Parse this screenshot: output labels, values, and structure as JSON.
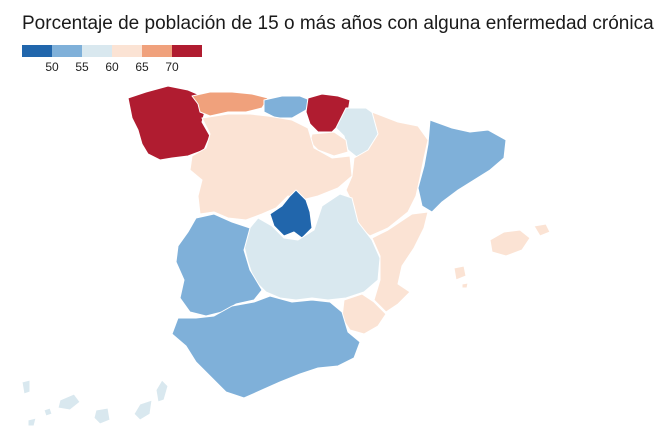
{
  "title": "Porcentaje de población de 15 o más años con alguna enfermedad crónica",
  "legend": {
    "bins": [
      {
        "color": "#2166ac"
      },
      {
        "color": "#7fb0d9"
      },
      {
        "color": "#d9e8ef"
      },
      {
        "color": "#fbe3d4"
      },
      {
        "color": "#f0a17c"
      },
      {
        "color": "#b01c30"
      }
    ],
    "ticks": [
      "50",
      "55",
      "60",
      "65",
      "70"
    ]
  },
  "colors": {
    "band_lt50": "#2166ac",
    "band_50_55": "#7fb0d9",
    "band_55_60": "#d9e8ef",
    "band_60_65": "#fbe3d4",
    "band_65_70": "#f0a17c",
    "band_ge70": "#b01c30"
  },
  "regions": [
    {
      "id": "galicia",
      "band": "band_ge70"
    },
    {
      "id": "asturias",
      "band": "band_65_70"
    },
    {
      "id": "cantabria",
      "band": "band_50_55"
    },
    {
      "id": "pais-vasco",
      "band": "band_ge70"
    },
    {
      "id": "navarra",
      "band": "band_55_60"
    },
    {
      "id": "la-rioja",
      "band": "band_60_65"
    },
    {
      "id": "castilla-y-leon",
      "band": "band_60_65"
    },
    {
      "id": "aragon",
      "band": "band_60_65"
    },
    {
      "id": "cataluna",
      "band": "band_50_55"
    },
    {
      "id": "madrid",
      "band": "band_lt50"
    },
    {
      "id": "castilla-la-mancha",
      "band": "band_55_60"
    },
    {
      "id": "extremadura",
      "band": "band_50_55"
    },
    {
      "id": "comunitat-valenciana",
      "band": "band_60_65"
    },
    {
      "id": "murcia",
      "band": "band_60_65"
    },
    {
      "id": "andalucia",
      "band": "band_50_55"
    },
    {
      "id": "illes-balears",
      "band": "band_60_65"
    },
    {
      "id": "canarias",
      "band": "band_55_60"
    }
  ]
}
